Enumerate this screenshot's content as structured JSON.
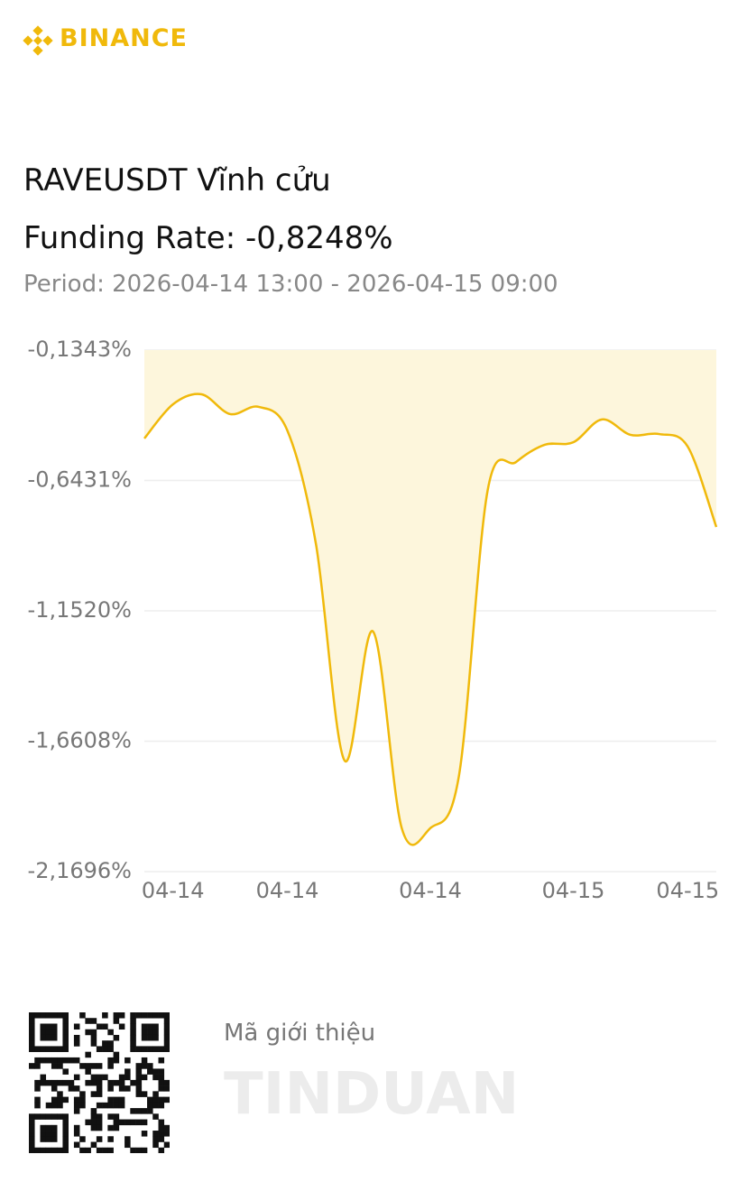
{
  "header": {
    "brand": "BINANCE",
    "title": "RAVEUSDT Vĩnh cửu",
    "funding_rate": "Funding Rate: -0,8248%",
    "period": "Period: 2026-04-14 13:00 - 2026-04-15 09:00"
  },
  "chart_data": {
    "type": "line",
    "categories": [
      null,
      "04-14",
      null,
      null,
      null,
      "04-14",
      null,
      null,
      null,
      null,
      "04-14",
      null,
      null,
      null,
      null,
      "04-15",
      null,
      null,
      null,
      "04-15",
      null
    ],
    "series": [
      {
        "name": "Funding Rate",
        "color": "#f0b90b",
        "values": [
          -0.479,
          -0.346,
          -0.307,
          -0.384,
          -0.356,
          -0.448,
          -0.891,
          -1.736,
          -1.233,
          -2.0,
          -2.0,
          -1.796,
          -0.684,
          -0.571,
          -0.504,
          -0.494,
          -0.405,
          -0.465,
          -0.462,
          -0.511,
          -0.8248
        ]
      }
    ],
    "area_color": "#fdf6dc",
    "ylim": [
      -2.1696,
      -0.1343
    ],
    "yticks": [
      {
        "value": -2.1696,
        "label": "-2,1696%"
      },
      {
        "value": -1.6608,
        "label": "-1,6608%"
      },
      {
        "value": -1.152,
        "label": "-1,1520%"
      },
      {
        "value": -0.6431,
        "label": "-0,6431%"
      },
      {
        "value": -0.1343,
        "label": "-0,1343%"
      }
    ],
    "grid": true
  },
  "referral": {
    "label": "Mã giới thiệu",
    "code": "TINDUAN"
  }
}
